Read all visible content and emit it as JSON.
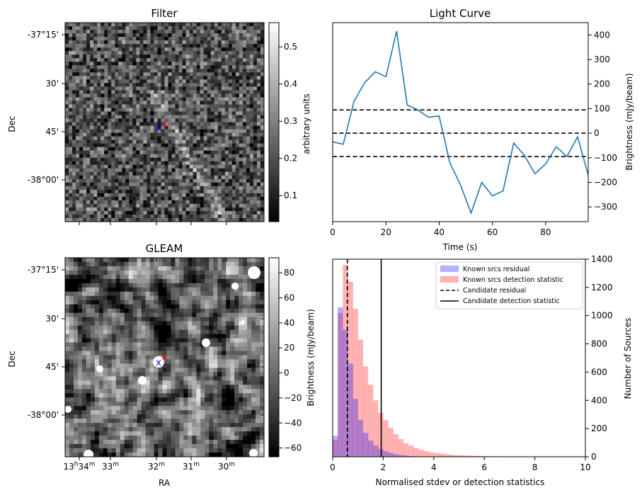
{
  "chart_data": [
    {
      "id": "filter",
      "type": "heatmap",
      "title": "Filter",
      "xlabel": "",
      "ylabel": "Dec",
      "yticks": [
        "-37°15'",
        "30'",
        "45'",
        "-38°00'"
      ],
      "colorbar": {
        "label": "arbitrary units",
        "ticks": [
          "0.1",
          "0.2",
          "0.3",
          "0.4",
          "0.5"
        ],
        "range": [
          0.03,
          0.565
        ]
      },
      "markers": [
        {
          "label": "x",
          "color": "#0000ff"
        },
        {
          "label": "x",
          "color": "#ff0000"
        }
      ]
    },
    {
      "id": "light_curve",
      "type": "line",
      "title": "Light Curve",
      "xlabel": "Time (s)",
      "ylabel": "Brightness (mJy/beam)",
      "xlim": [
        0,
        96
      ],
      "ylim": [
        -360,
        450
      ],
      "xticks": [
        "0",
        "20",
        "40",
        "60",
        "80"
      ],
      "yticks": [
        "-300",
        "-200",
        "-100",
        "0",
        "100",
        "200",
        "300",
        "400"
      ],
      "series": [
        {
          "name": "light curve",
          "color": "#1f77b4",
          "x": [
            0,
            4,
            8,
            12,
            16,
            20,
            24,
            28,
            32,
            36,
            40,
            44,
            48,
            52,
            56,
            60,
            64,
            68,
            72,
            76,
            80,
            84,
            88,
            92,
            96
          ],
          "y": [
            -35,
            -45,
            130,
            205,
            250,
            230,
            415,
            115,
            95,
            65,
            70,
            -120,
            -210,
            -325,
            -200,
            -255,
            -235,
            -40,
            -90,
            -165,
            -125,
            -55,
            -95,
            -15,
            -170
          ]
        }
      ],
      "hlines": [
        95,
        0,
        -95
      ]
    },
    {
      "id": "gleam",
      "type": "heatmap",
      "title": "GLEAM",
      "xlabel": "RA",
      "ylabel": "Dec",
      "yticks": [
        "-37°15'",
        "30'",
        "45'",
        "-38°00'"
      ],
      "xticks": [
        {
          "base": "13",
          "h": "h",
          "m": "34",
          "sup": "m"
        },
        {
          "base": "",
          "h": "",
          "m": "33",
          "sup": "m"
        },
        {
          "base": "",
          "h": "",
          "m": "32",
          "sup": "m"
        },
        {
          "base": "",
          "h": "",
          "m": "31",
          "sup": "m"
        },
        {
          "base": "",
          "h": "",
          "m": "30",
          "sup": "m"
        }
      ],
      "colorbar": {
        "label": "Brightness (mJy/beam)",
        "ticks": [
          "−60",
          "−40",
          "−20",
          "0",
          "20",
          "40",
          "60",
          "80"
        ],
        "range": [
          -67,
          92
        ]
      },
      "markers": [
        {
          "label": "x",
          "color": "#0000ff"
        },
        {
          "label": "x",
          "color": "#ff0000"
        }
      ]
    },
    {
      "id": "histogram",
      "type": "bar",
      "title": "",
      "xlabel": "Normalised stdev or detection statistics",
      "ylabel": "Number of Sources",
      "xlim": [
        0,
        10
      ],
      "ylim": [
        0,
        1400
      ],
      "bin_width": 0.2,
      "xticks": [
        "0",
        "2",
        "4",
        "6",
        "8",
        "10"
      ],
      "yticks": [
        "0",
        "200",
        "400",
        "600",
        "800",
        "1000",
        "1200",
        "1400"
      ],
      "series": [
        {
          "name": "Known srcs residual",
          "color": "#0000ff",
          "opacity": 0.3,
          "values": [
            150,
            1060,
            900,
            660,
            410,
            260,
            170,
            115,
            80,
            55,
            40,
            28,
            18,
            12,
            8,
            5,
            3,
            2,
            1,
            1
          ]
        },
        {
          "name": "Known srcs detection statistic",
          "color": "#ff0000",
          "opacity": 0.3,
          "values": [
            120,
            1020,
            1360,
            1240,
            1050,
            830,
            640,
            510,
            400,
            310,
            260,
            205,
            160,
            125,
            95,
            80,
            62,
            50,
            40,
            32,
            26,
            22,
            18,
            15,
            12,
            10,
            9,
            7,
            6,
            5,
            4,
            4,
            3,
            3,
            2,
            2,
            2,
            1,
            1,
            1,
            1,
            1,
            1,
            1,
            1,
            0,
            0,
            0,
            0,
            0
          ]
        }
      ],
      "vlines": [
        {
          "name": "Candidate residual",
          "x": 0.58,
          "style": "dashed"
        },
        {
          "name": "Candidate detection statistic",
          "x": 1.92,
          "style": "solid"
        }
      ],
      "legend_position": "top-right"
    }
  ]
}
